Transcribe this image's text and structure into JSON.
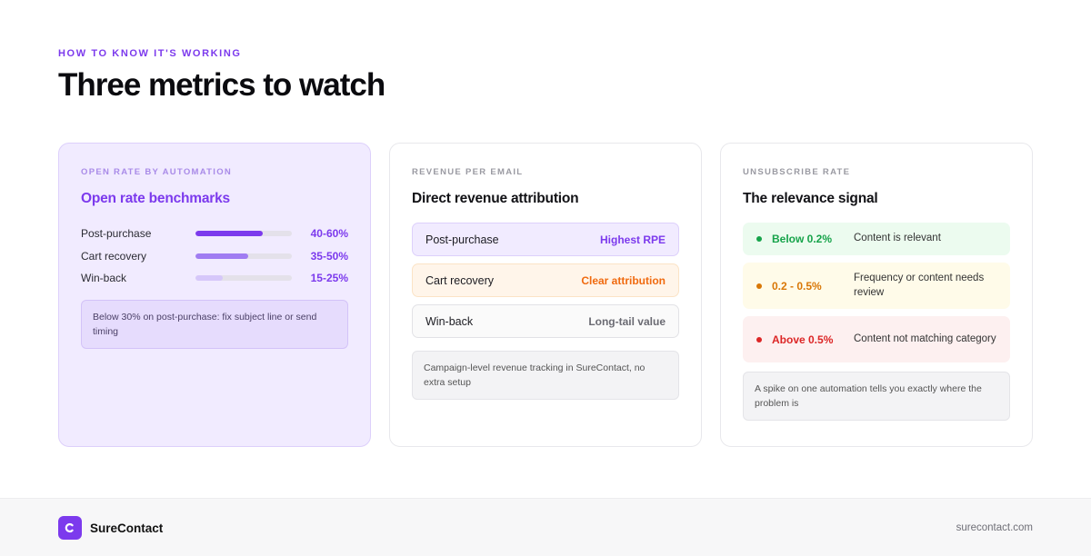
{
  "header": {
    "eyebrow": "HOW TO KNOW IT'S WORKING",
    "title": "Three metrics to watch"
  },
  "cards": {
    "open_rate": {
      "eyebrow": "OPEN RATE BY AUTOMATION",
      "title": "Open rate benchmarks",
      "rows": [
        {
          "label": "Post-purchase",
          "value": "40-60%",
          "fill": 0.7,
          "color": "#7c3aed"
        },
        {
          "label": "Cart recovery",
          "value": "35-50%",
          "fill": 0.55,
          "color": "#a07cf2"
        },
        {
          "label": "Win-back",
          "value": "15-25%",
          "fill": 0.28,
          "color": "#d6c7fa"
        }
      ],
      "note": "Below 30% on post-purchase: fix subject line or send timing"
    },
    "revenue": {
      "eyebrow": "REVENUE PER EMAIL",
      "title": "Direct revenue attribution",
      "rows": [
        {
          "label": "Post-purchase",
          "tag": "Highest RPE"
        },
        {
          "label": "Cart recovery",
          "tag": "Clear attribution"
        },
        {
          "label": "Win-back",
          "tag": "Long-tail value"
        }
      ],
      "note": "Campaign-level revenue tracking in SureContact, no extra setup"
    },
    "unsubscribe": {
      "eyebrow": "UNSUBSCRIBE RATE",
      "title": "The relevance signal",
      "rows": [
        {
          "threshold": "Below 0.2%",
          "meaning": "Content is relevant"
        },
        {
          "threshold": "0.2 - 0.5%",
          "meaning": "Frequency or content needs review"
        },
        {
          "threshold": "Above 0.5%",
          "meaning": "Content not matching category"
        }
      ],
      "note": "A spike on one automation tells you exactly where the problem is"
    }
  },
  "footer": {
    "brand": "SureContact",
    "site": "surecontact.com"
  }
}
